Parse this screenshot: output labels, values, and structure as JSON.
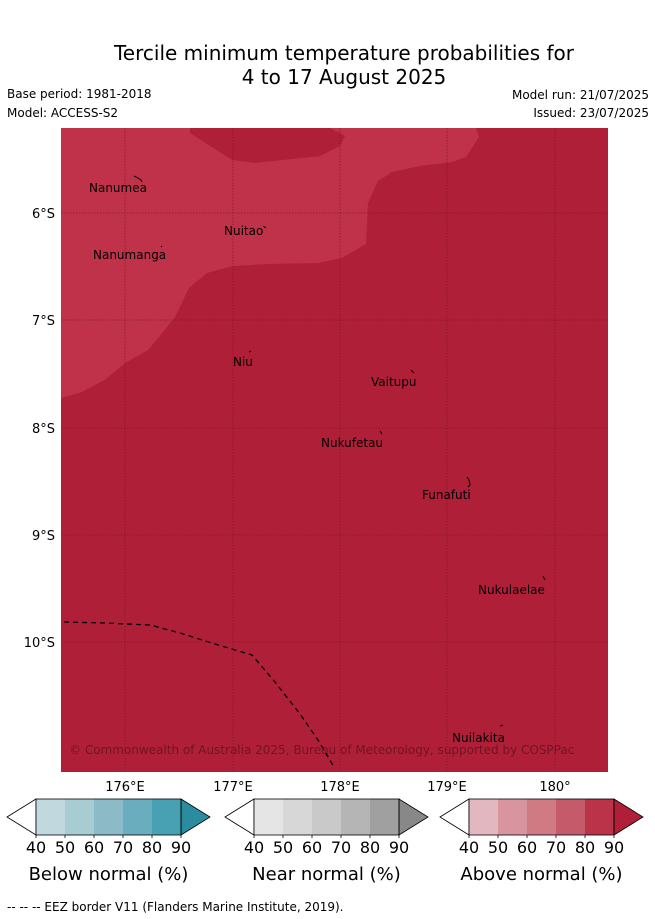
{
  "title": {
    "line1": "Tercile minimum temperature probabilities for",
    "line2": "4 to 17 August 2025"
  },
  "meta": {
    "base_period": "Base period: 1981-2018",
    "model": "Model: ACCESS-S2",
    "model_run": "Model run: 21/07/2025",
    "issued": "Issued: 23/07/2025"
  },
  "map": {
    "lat_labels": [
      "6°S",
      "7°S",
      "8°S",
      "9°S",
      "10°S"
    ],
    "lon_labels": [
      "176°E",
      "177°E",
      "178°E",
      "179°E",
      "180°"
    ],
    "islands": [
      {
        "name": "Nanumea"
      },
      {
        "name": "Nuitao"
      },
      {
        "name": "Nanumanga"
      },
      {
        "name": "Niu"
      },
      {
        "name": "Vaitupu"
      },
      {
        "name": "Nukufetau"
      },
      {
        "name": "Funafuti"
      },
      {
        "name": "Nukulaelae"
      },
      {
        "name": "Nuilakita"
      }
    ],
    "copyright": "© Commonwealth of Australia 2025, Bureau of Meteorology, supported by COSPPac",
    "colors": {
      "above_90": "#b01f38",
      "above_80_90": "#bf3249",
      "above_70_80_deep": "#b51e37"
    }
  },
  "legends": [
    {
      "title": "Below normal (%)",
      "ticks": [
        "40",
        "50",
        "60",
        "70",
        "80",
        "90"
      ],
      "colors": [
        "#ffffff",
        "#c0d8de",
        "#a7ccd2",
        "#8cbac6",
        "#6aadbe",
        "#48a1b3",
        "#2b8c9f"
      ]
    },
    {
      "title": "Near normal (%)",
      "ticks": [
        "40",
        "50",
        "60",
        "70",
        "80",
        "90"
      ],
      "colors": [
        "#ffffff",
        "#e5e5e5",
        "#d7d7d7",
        "#c9c9c9",
        "#b5b5b5",
        "#a0a0a0",
        "#888888"
      ]
    },
    {
      "title": "Above normal (%)",
      "ticks": [
        "40",
        "50",
        "60",
        "70",
        "80",
        "90"
      ],
      "colors": [
        "#ffffff",
        "#e2b7bf",
        "#d8959f",
        "#d07b84",
        "#c55b6a",
        "#ba3349",
        "#b01f38"
      ]
    }
  ],
  "footer": "--  --  -- EEZ border V11 (Flanders Marine Institute, 2019)."
}
